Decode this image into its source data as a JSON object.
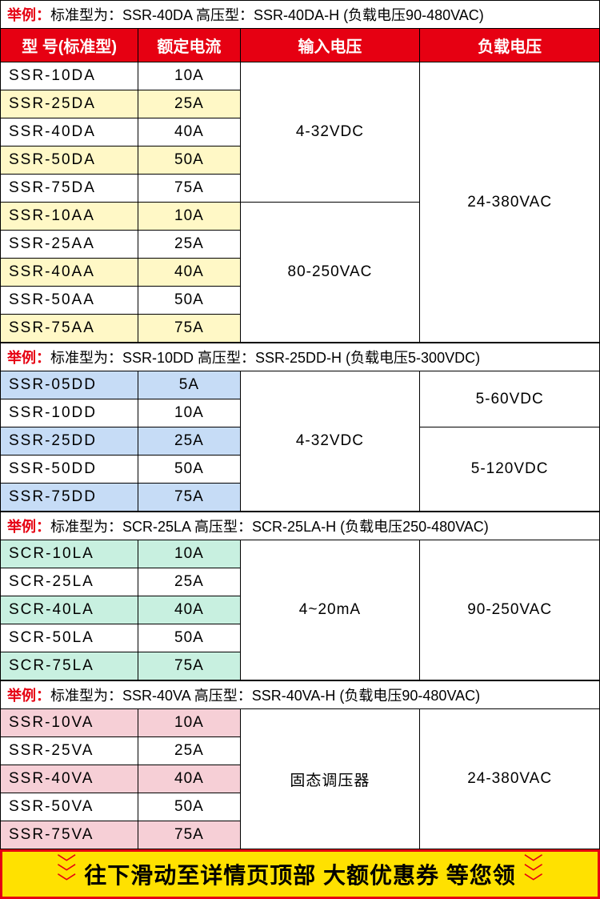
{
  "headers": [
    "型 号(标准型)",
    "额定电流",
    "输入电压",
    "负载电压"
  ],
  "exampleLabel": "举例：",
  "sections": [
    {
      "example": "标准型为：SSR-40DA 高压型：SSR-40DA-H (负载电压90-480VAC)",
      "class": "yellow-alt",
      "showHeader": true,
      "groups": [
        {
          "input": "4-32VDC",
          "loadSpan": 10,
          "load": "24-380VAC",
          "rows": [
            {
              "m": "SSR-10DA",
              "c": "10A"
            },
            {
              "m": "SSR-25DA",
              "c": "25A"
            },
            {
              "m": "SSR-40DA",
              "c": "40A"
            },
            {
              "m": "SSR-50DA",
              "c": "50A"
            },
            {
              "m": "SSR-75DA",
              "c": "75A"
            }
          ]
        },
        {
          "input": "80-250VAC",
          "rows": [
            {
              "m": "SSR-10AA",
              "c": "10A"
            },
            {
              "m": "SSR-25AA",
              "c": "25A"
            },
            {
              "m": "SSR-40AA",
              "c": "40A"
            },
            {
              "m": "SSR-50AA",
              "c": "50A"
            },
            {
              "m": "SSR-75AA",
              "c": "75A"
            }
          ]
        }
      ]
    },
    {
      "example": "标准型为：SSR-10DD 高压型：SSR-25DD-H (负载电压5-300VDC)",
      "class": "blue-alt",
      "showHeader": false,
      "groups": [
        {
          "input": "4-32VDC",
          "inputSpan": 5,
          "loads": [
            {
              "load": "5-60VDC",
              "span": 2
            },
            {
              "load": "5-120VDC",
              "span": 3
            }
          ],
          "rows": [
            {
              "m": "SSR-05DD",
              "c": "5A"
            },
            {
              "m": "SSR-10DD",
              "c": "10A"
            },
            {
              "m": "SSR-25DD",
              "c": "25A"
            },
            {
              "m": "SSR-50DD",
              "c": "50A"
            },
            {
              "m": "SSR-75DD",
              "c": "75A"
            }
          ]
        }
      ]
    },
    {
      "example": "标准型为：SCR-25LA 高压型：SCR-25LA-H (负载电压250-480VAC)",
      "class": "green-alt",
      "showHeader": false,
      "groups": [
        {
          "input": "4~20mA",
          "load": "90-250VAC",
          "loadSpan": 5,
          "rows": [
            {
              "m": "SCR-10LA",
              "c": "10A"
            },
            {
              "m": "SCR-25LA",
              "c": "25A"
            },
            {
              "m": "SCR-40LA",
              "c": "40A"
            },
            {
              "m": "SCR-50LA",
              "c": "50A"
            },
            {
              "m": "SCR-75LA",
              "c": "75A"
            }
          ]
        }
      ]
    },
    {
      "example": "标准型为：SSR-40VA 高压型：SSR-40VA-H (负载电压90-480VAC)",
      "class": "pink-alt",
      "showHeader": false,
      "groups": [
        {
          "input": "固态调压器",
          "load": "24-380VAC",
          "loadSpan": 5,
          "rows": [
            {
              "m": "SSR-10VA",
              "c": "10A"
            },
            {
              "m": "SSR-25VA",
              "c": "25A"
            },
            {
              "m": "SSR-40VA",
              "c": "40A"
            },
            {
              "m": "SSR-50VA",
              "c": "50A"
            },
            {
              "m": "SSR-75VA",
              "c": "75A"
            }
          ]
        }
      ]
    }
  ],
  "footer": "往下滑动至详情页顶部 大额优惠券 等您领"
}
